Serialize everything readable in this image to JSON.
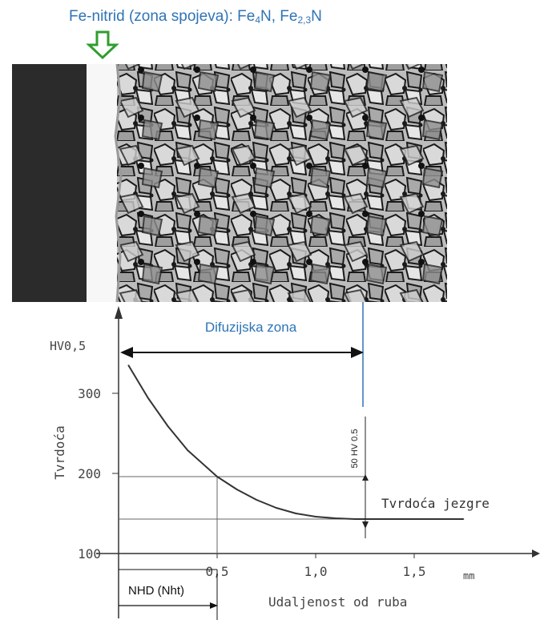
{
  "header": {
    "label": "Fe-nitrid (zona spojeva): Fe",
    "sub1": "4",
    "mid": "N, Fe",
    "sub2": "2,3",
    "tail": "N"
  },
  "diffusion_zone_label": "Difuzijska zona",
  "nhd_label": "NHD (Nht)",
  "core_hardness_label": "Tvrdoća jezgre",
  "delta_label": "50 HV 0.5",
  "colors": {
    "annotation_blue": "#2e74b5",
    "arrow_green": "#2e9e2e",
    "curve": "#333333"
  },
  "chart_data": {
    "type": "line",
    "ylabel": "Tvrdoća",
    "yunit": "HV0,5",
    "xlabel": "Udaljenost od ruba",
    "xunit": "mm",
    "xlim": [
      0,
      1.9
    ],
    "ylim": [
      100,
      360
    ],
    "xticks": [
      "0,5",
      "1,0",
      "1,5"
    ],
    "xtick_values": [
      0.5,
      1.0,
      1.5
    ],
    "yticks": [
      "100",
      "200",
      "300"
    ],
    "ytick_values": [
      100,
      200,
      300
    ],
    "series": [
      {
        "x": [
          0.05,
          0.15,
          0.25,
          0.35,
          0.45,
          0.5,
          0.6,
          0.7,
          0.8,
          0.9,
          1.0,
          1.1,
          1.2,
          1.3,
          1.5,
          1.75
        ],
        "y": [
          335,
          294,
          259,
          229,
          207,
          196,
          180,
          167,
          157,
          150,
          146,
          144,
          143,
          143,
          143,
          143
        ]
      }
    ],
    "reference_lines": {
      "hardness_at_nhd": 196,
      "core_hardness": 143,
      "nhd_mm": 0.5,
      "diffusion_zone_end_mm": 1.25
    }
  }
}
